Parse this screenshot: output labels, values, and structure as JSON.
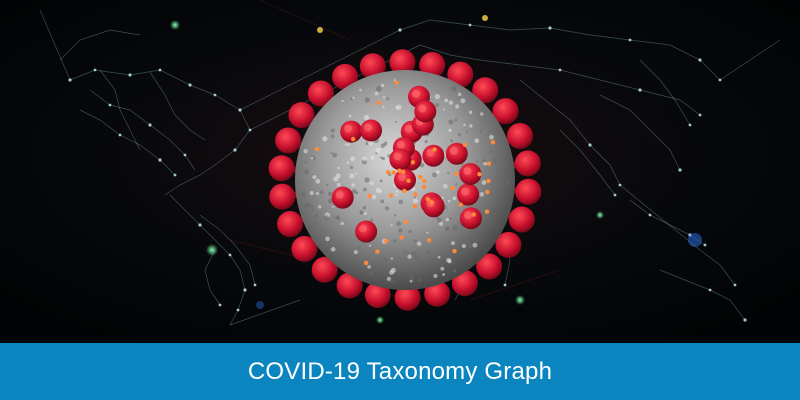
{
  "banner": {
    "caption": "COVID-19 Taxonomy Graph",
    "caption_bar_color": "#0a85c0",
    "hero_image": {
      "subject_icon": "coronavirus-icon",
      "background": "network-world-map",
      "virus_color": "#c8102e",
      "node_color": "#bfe8f0"
    }
  }
}
